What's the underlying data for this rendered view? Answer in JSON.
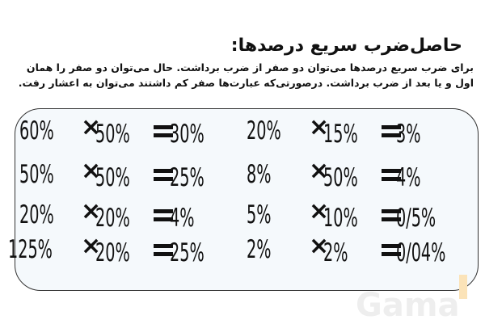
{
  "title": "حاصل‌ضرب سریع درصدها:",
  "paragraph": "برای ضرب سریع درصدها می‌توان دو صفر از ضرب برداشت. حال می‌توان دو صفر را همان اول و یا بعد از ضرب برداشت. درصورتی‌که عبارت‌ها صفر کم داشتند می‌توان به اعشار رفت.",
  "operators": {
    "times": "×",
    "equals": "="
  },
  "rows": [
    {
      "left": {
        "a": "60%",
        "b": "50%",
        "result": "30%"
      },
      "right": {
        "a": "20%",
        "b": "15%",
        "result": "3%"
      }
    },
    {
      "left": {
        "a": "50%",
        "b": "50%",
        "result": "25%"
      },
      "right": {
        "a": "8%",
        "b": "50%",
        "result": "4%"
      }
    },
    {
      "left": {
        "a": "20%",
        "b": "20%",
        "result": "4%"
      },
      "right": {
        "a": "5%",
        "b": "10%",
        "result": "0/5%"
      }
    },
    {
      "left": {
        "a": "125%",
        "b": "20%",
        "result": "25%"
      },
      "right": {
        "a": "2%",
        "b": "2%",
        "result": "0/04%"
      }
    }
  ],
  "watermark": "Gama"
}
